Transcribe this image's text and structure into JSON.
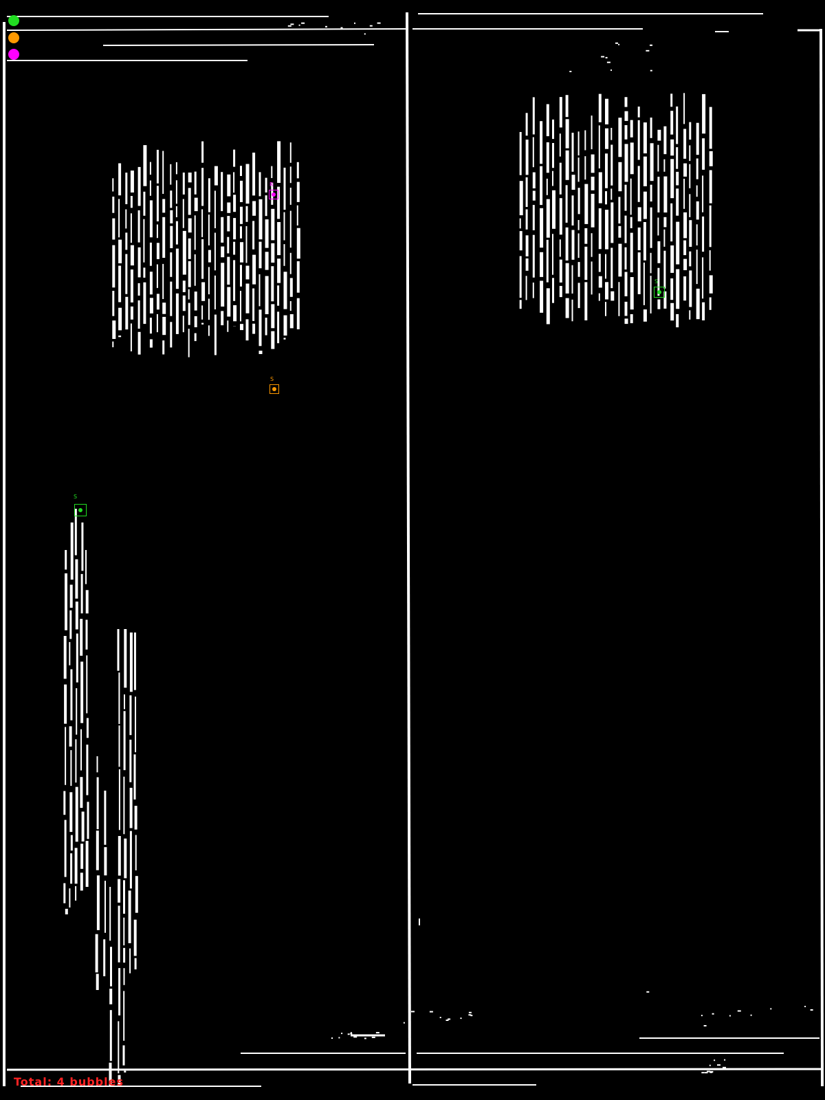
{
  "legend": {
    "items": [
      {
        "color": "#22dd22"
      },
      {
        "color": "#ff9900"
      },
      {
        "color": "#ff00ff"
      }
    ]
  },
  "markers": [
    {
      "label": "R",
      "color": "#ff00ff"
    },
    {
      "label": "S",
      "color": "#ff9900"
    },
    {
      "label": "S",
      "color": "#22dd22"
    },
    {
      "label": "S",
      "color": "#22dd22"
    }
  ],
  "footer": {
    "total_text": "Total: 4 bubbles",
    "total_color": "#ff2222"
  },
  "colors": {
    "background": "#000000",
    "lines": "#ffffff"
  }
}
